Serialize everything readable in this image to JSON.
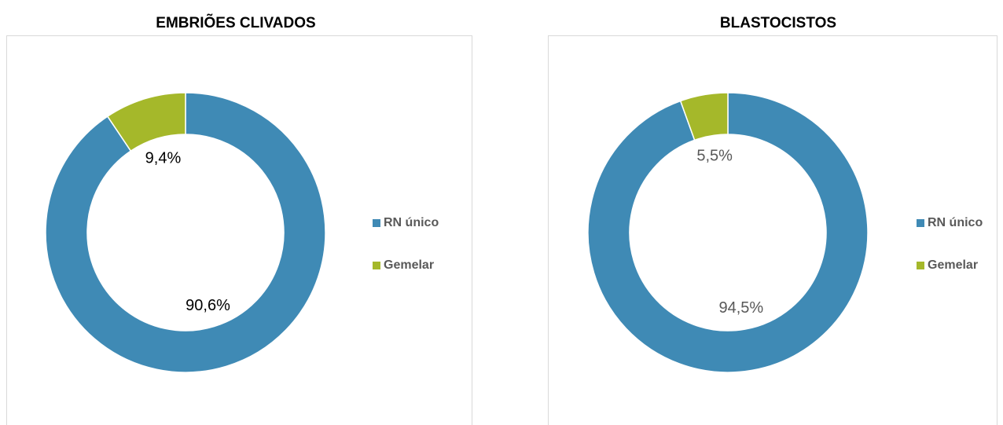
{
  "chart_data": [
    {
      "type": "pie",
      "title": "EMBRIÕES CLIVADOS",
      "categories": [
        "RN único",
        "Gemelar"
      ],
      "values": [
        90.6,
        9.4
      ],
      "value_labels": [
        "90,6%",
        "9,4%"
      ],
      "colors": [
        "#3f8ab5",
        "#a5b82a"
      ],
      "donut": true,
      "legend": "right"
    },
    {
      "type": "pie",
      "title": "BLASTOCISTOS",
      "categories": [
        "RN único",
        "Gemelar"
      ],
      "values": [
        94.5,
        5.5
      ],
      "value_labels": [
        "94,5%",
        "5,5%"
      ],
      "colors": [
        "#3f8ab5",
        "#a5b82a"
      ],
      "donut": true,
      "legend": "right"
    }
  ]
}
